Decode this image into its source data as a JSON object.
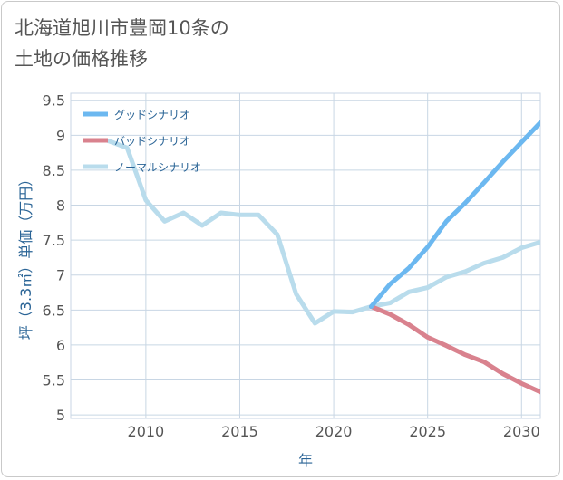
{
  "title": "北海道旭川市豊岡10条の\n土地の価格推移",
  "colors": {
    "good": "#6cb8f0",
    "bad": "#d9828e",
    "normal": "#b9dcec",
    "grid": "#c8d6e4",
    "axis_text": "#2a6496"
  },
  "chart_data": {
    "type": "line",
    "title": "北海道旭川市豊岡10条の 土地の価格推移",
    "xlabel": "年",
    "ylabel": "坪（3.3㎡）単価（万円）",
    "xlim": [
      2006,
      2031
    ],
    "ylim": [
      4.95,
      9.6
    ],
    "xticks": [
      "2010",
      "2015",
      "2020",
      "2025",
      "2030"
    ],
    "yticks": [
      "5",
      "5.5",
      "6",
      "6.5",
      "7",
      "7.5",
      "8",
      "8.5",
      "9",
      "9.5"
    ],
    "grid": true,
    "legend_position": "top-left",
    "series": [
      {
        "name": "グッドシナリオ",
        "color_key": "good",
        "x": [
          2022,
          2023,
          2024,
          2025,
          2026,
          2027,
          2028,
          2029,
          2030,
          2031
        ],
        "y": [
          6.55,
          6.87,
          7.1,
          7.4,
          7.77,
          8.03,
          8.32,
          8.62,
          8.9,
          9.18
        ]
      },
      {
        "name": "バッドシナリオ",
        "color_key": "bad",
        "x": [
          2022,
          2023,
          2024,
          2025,
          2026,
          2027,
          2028,
          2029,
          2030,
          2031
        ],
        "y": [
          6.55,
          6.44,
          6.29,
          6.11,
          5.99,
          5.86,
          5.76,
          5.59,
          5.45,
          5.33
        ]
      },
      {
        "name": "ノーマルシナリオ",
        "color_key": "normal",
        "x": [
          2008,
          2009,
          2010,
          2011,
          2012,
          2013,
          2014,
          2015,
          2016,
          2017,
          2018,
          2019,
          2020,
          2021,
          2022,
          2023,
          2024,
          2025,
          2026,
          2027,
          2028,
          2029,
          2030,
          2031
        ],
        "y": [
          8.92,
          8.82,
          8.07,
          7.77,
          7.89,
          7.71,
          7.89,
          7.86,
          7.86,
          7.58,
          6.73,
          6.31,
          6.48,
          6.47,
          6.55,
          6.6,
          6.76,
          6.82,
          6.97,
          7.05,
          7.17,
          7.25,
          7.39,
          7.47
        ]
      }
    ]
  }
}
